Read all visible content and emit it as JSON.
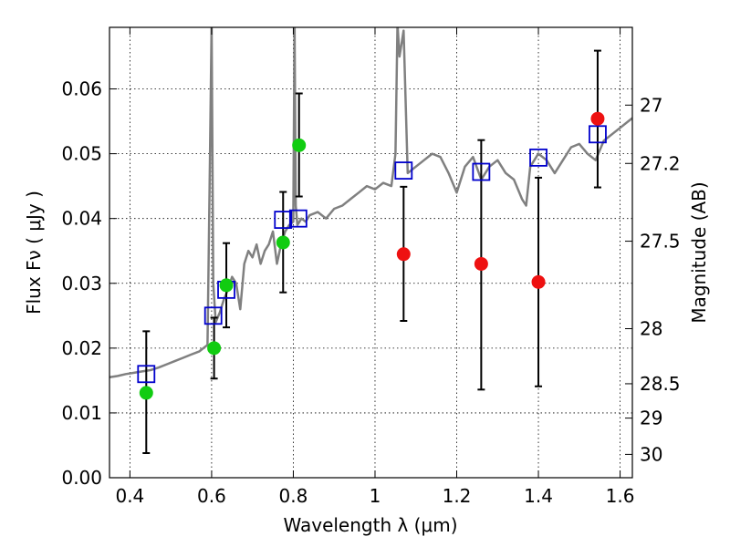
{
  "chart_data": {
    "type": "scatter",
    "xlabel": "Wavelength  λ (μm)",
    "ylabel": "Flux  Fν  ( μJy )",
    "y2label": "Magnitude (AB)",
    "xlim": [
      0.35,
      1.63
    ],
    "ylim": [
      0.0,
      0.0695
    ],
    "grid": true,
    "x_ticks": [
      0.4,
      0.6,
      0.8,
      1.0,
      1.2,
      1.4,
      1.6
    ],
    "x_tick_labels": [
      "0.4",
      "0.6",
      "0.8",
      "1",
      "1.2",
      "1.4",
      "1.6"
    ],
    "y_ticks": [
      0.0,
      0.01,
      0.02,
      0.03,
      0.04,
      0.05,
      0.06
    ],
    "y_tick_labels": [
      "0.00",
      "0.01",
      "0.02",
      "0.03",
      "0.04",
      "0.05",
      "0.06"
    ],
    "y2_ticks": [
      {
        "label": "27",
        "flux": 0.0575
      },
      {
        "label": "27.2",
        "flux": 0.0485
      },
      {
        "label": "27.5",
        "flux": 0.0365
      },
      {
        "label": "28",
        "flux": 0.023
      },
      {
        "label": "28.5",
        "flux": 0.0145
      },
      {
        "label": "29",
        "flux": 0.0092
      },
      {
        "label": "30",
        "flux": 0.0036
      }
    ],
    "sed_model": {
      "color": "#808080",
      "x": [
        0.35,
        0.37,
        0.39,
        0.41,
        0.43,
        0.45,
        0.47,
        0.49,
        0.51,
        0.53,
        0.55,
        0.57,
        0.59,
        0.595,
        0.6,
        0.604,
        0.61,
        0.62,
        0.63,
        0.64,
        0.65,
        0.66,
        0.67,
        0.68,
        0.69,
        0.7,
        0.71,
        0.72,
        0.73,
        0.74,
        0.75,
        0.76,
        0.77,
        0.78,
        0.79,
        0.8,
        0.803,
        0.806,
        0.81,
        0.82,
        0.83,
        0.84,
        0.86,
        0.88,
        0.9,
        0.92,
        0.94,
        0.96,
        0.98,
        1.0,
        1.02,
        1.04,
        1.05,
        1.055,
        1.06,
        1.07,
        1.08,
        1.1,
        1.12,
        1.14,
        1.16,
        1.18,
        1.2,
        1.22,
        1.24,
        1.26,
        1.28,
        1.3,
        1.32,
        1.34,
        1.36,
        1.37,
        1.38,
        1.4,
        1.42,
        1.44,
        1.46,
        1.48,
        1.5,
        1.52,
        1.54,
        1.56,
        1.58,
        1.6,
        1.63
      ],
      "y": [
        0.0155,
        0.0157,
        0.016,
        0.0162,
        0.0164,
        0.0166,
        0.017,
        0.0175,
        0.018,
        0.0185,
        0.019,
        0.0195,
        0.0205,
        0.045,
        0.07,
        0.03,
        0.024,
        0.0255,
        0.0275,
        0.029,
        0.031,
        0.03,
        0.026,
        0.033,
        0.035,
        0.034,
        0.036,
        0.033,
        0.035,
        0.036,
        0.038,
        0.033,
        0.036,
        0.038,
        0.039,
        0.0395,
        0.07,
        0.042,
        0.039,
        0.04,
        0.0395,
        0.0405,
        0.041,
        0.04,
        0.0415,
        0.042,
        0.043,
        0.044,
        0.045,
        0.0445,
        0.0455,
        0.045,
        0.05,
        0.07,
        0.065,
        0.069,
        0.047,
        0.048,
        0.049,
        0.05,
        0.0495,
        0.047,
        0.044,
        0.048,
        0.0495,
        0.046,
        0.048,
        0.049,
        0.047,
        0.046,
        0.043,
        0.042,
        0.048,
        0.05,
        0.049,
        0.047,
        0.049,
        0.051,
        0.0515,
        0.05,
        0.049,
        0.052,
        0.053,
        0.054,
        0.0555
      ]
    },
    "model_photometry": {
      "marker": "open-square",
      "color": "#0000cc",
      "points": [
        {
          "x": 0.44,
          "y": 0.016
        },
        {
          "x": 0.604,
          "y": 0.025
        },
        {
          "x": 0.636,
          "y": 0.029
        },
        {
          "x": 0.775,
          "y": 0.0398
        },
        {
          "x": 0.812,
          "y": 0.04
        },
        {
          "x": 1.07,
          "y": 0.0474
        },
        {
          "x": 1.26,
          "y": 0.0472
        },
        {
          "x": 1.4,
          "y": 0.0494
        },
        {
          "x": 1.545,
          "y": 0.053
        }
      ]
    },
    "observed_optical": {
      "marker": "filled-circle",
      "color": "#11cc11",
      "points": [
        {
          "x": 0.44,
          "y": 0.0131,
          "lo": 0.0038,
          "hi": 0.0226
        },
        {
          "x": 0.606,
          "y": 0.02,
          "lo": 0.0153,
          "hi": 0.0247
        },
        {
          "x": 0.636,
          "y": 0.0297,
          "lo": 0.0232,
          "hi": 0.0362
        },
        {
          "x": 0.775,
          "y": 0.0363,
          "lo": 0.0286,
          "hi": 0.0441
        },
        {
          "x": 0.814,
          "y": 0.0513,
          "lo": 0.0434,
          "hi": 0.0593
        }
      ]
    },
    "observed_nir": {
      "marker": "filled-circle",
      "color": "#ee1111",
      "points": [
        {
          "x": 1.07,
          "y": 0.0345,
          "lo": 0.0242,
          "hi": 0.0449
        },
        {
          "x": 1.26,
          "y": 0.033,
          "lo": 0.0136,
          "hi": 0.0521
        },
        {
          "x": 1.4,
          "y": 0.0302,
          "lo": 0.0141,
          "hi": 0.0463
        },
        {
          "x": 1.545,
          "y": 0.0554,
          "lo": 0.0448,
          "hi": 0.0659
        }
      ]
    }
  }
}
